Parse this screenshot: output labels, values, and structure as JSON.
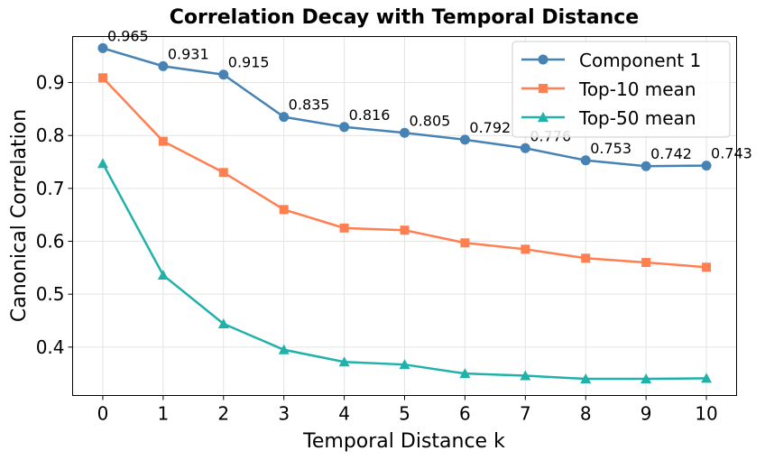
{
  "chart_data": {
    "type": "line",
    "title": "Correlation Decay with Temporal Distance",
    "xlabel": "Temporal Distance k",
    "ylabel": "Canonical Correlation",
    "x": [
      0,
      1,
      2,
      3,
      4,
      5,
      6,
      7,
      8,
      9,
      10
    ],
    "xlim": [
      -0.5,
      10.5
    ],
    "ylim": [
      0.3085,
      0.987
    ],
    "xticks": [
      "0",
      "1",
      "2",
      "3",
      "4",
      "5",
      "6",
      "7",
      "8",
      "9",
      "10"
    ],
    "yticks": [
      "0.4",
      "0.5",
      "0.6",
      "0.7",
      "0.8",
      "0.9"
    ],
    "ytick_values": [
      0.4,
      0.5,
      0.6,
      0.7,
      0.8,
      0.9
    ],
    "grid": true,
    "legend_position": "top-right",
    "series": [
      {
        "name": "Component 1",
        "color": "#4682b4",
        "marker": "circle",
        "values": [
          0.965,
          0.931,
          0.915,
          0.835,
          0.816,
          0.805,
          0.792,
          0.776,
          0.753,
          0.742,
          0.743
        ],
        "labels": [
          "0.965",
          "0.931",
          "0.915",
          "0.835",
          "0.816",
          "0.805",
          "0.792",
          "0.776",
          "0.753",
          "0.742",
          "0.743"
        ]
      },
      {
        "name": "Top-10 mean",
        "color": "#ff7f50",
        "marker": "square",
        "values": [
          0.909,
          0.789,
          0.73,
          0.66,
          0.625,
          0.621,
          0.597,
          0.585,
          0.568,
          0.56,
          0.551
        ]
      },
      {
        "name": "Top-50 mean",
        "color": "#20b2aa",
        "marker": "triangle",
        "values": [
          0.747,
          0.536,
          0.444,
          0.395,
          0.372,
          0.367,
          0.35,
          0.346,
          0.34,
          0.34,
          0.341
        ]
      }
    ]
  }
}
